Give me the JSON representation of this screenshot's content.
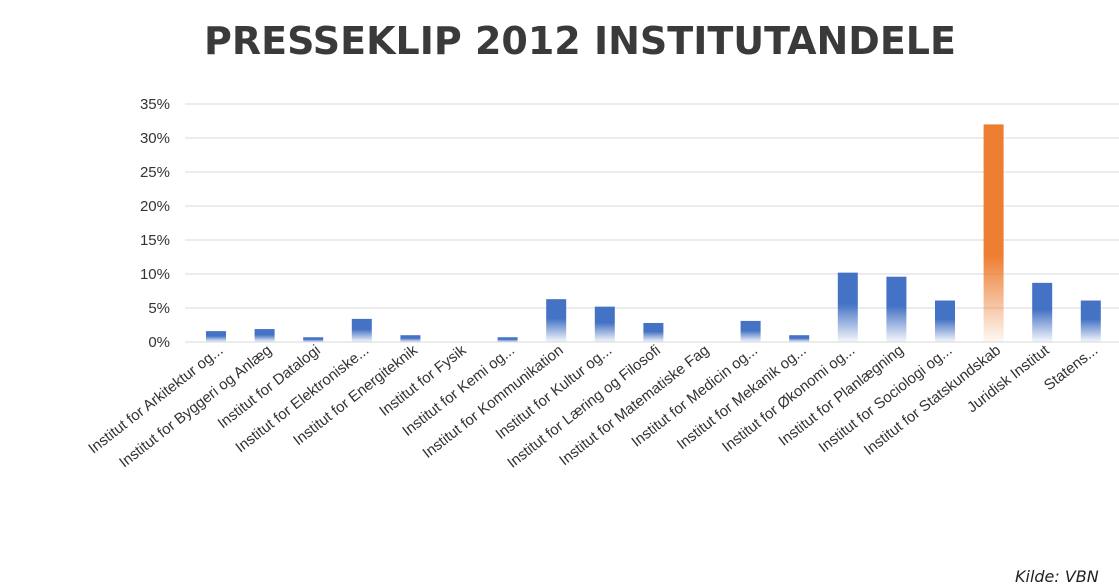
{
  "chart_data": {
    "type": "bar",
    "title": "PRESSEKLIP 2012 INSTITUTANDELE",
    "xlabel": "",
    "ylabel": "",
    "ylim": [
      0,
      35
    ],
    "yticks": [
      "0%",
      "5%",
      "10%",
      "15%",
      "20%",
      "25%",
      "30%",
      "35%"
    ],
    "grid": true,
    "categories": [
      "Institut for Arkitektur og...",
      "Institut for Byggeri og Anlæg",
      "Institut for Datalogi",
      "Institut for Elektroniske...",
      "Institut for Energiteknik",
      "Institut for Fysik",
      "Institut for Kemi og...",
      "Institut for Kommunikation",
      "Institut for Kultur og...",
      "Institut for Læring og Filosofi",
      "Institut for Matematiske Fag",
      "Institut for Medicin og...",
      "Institut for Mekanik og...",
      "Institut for Økonomi og...",
      "Institut for Planlægning",
      "Institut for Sociologi og...",
      "Institut for Statskundskab",
      "Juridisk Institut",
      "Statens..."
    ],
    "values": [
      1.6,
      1.9,
      0.7,
      3.4,
      1.0,
      0.0,
      0.7,
      6.3,
      5.2,
      2.8,
      0.0,
      3.1,
      1.0,
      10.2,
      9.6,
      6.1,
      32.0,
      8.7,
      6.1
    ],
    "colors": {
      "default": "#4472c4",
      "highlight": "#ed7d31",
      "highlight_category": "Institut for Statskundskab"
    }
  },
  "source_note": "Kilde: VBN"
}
